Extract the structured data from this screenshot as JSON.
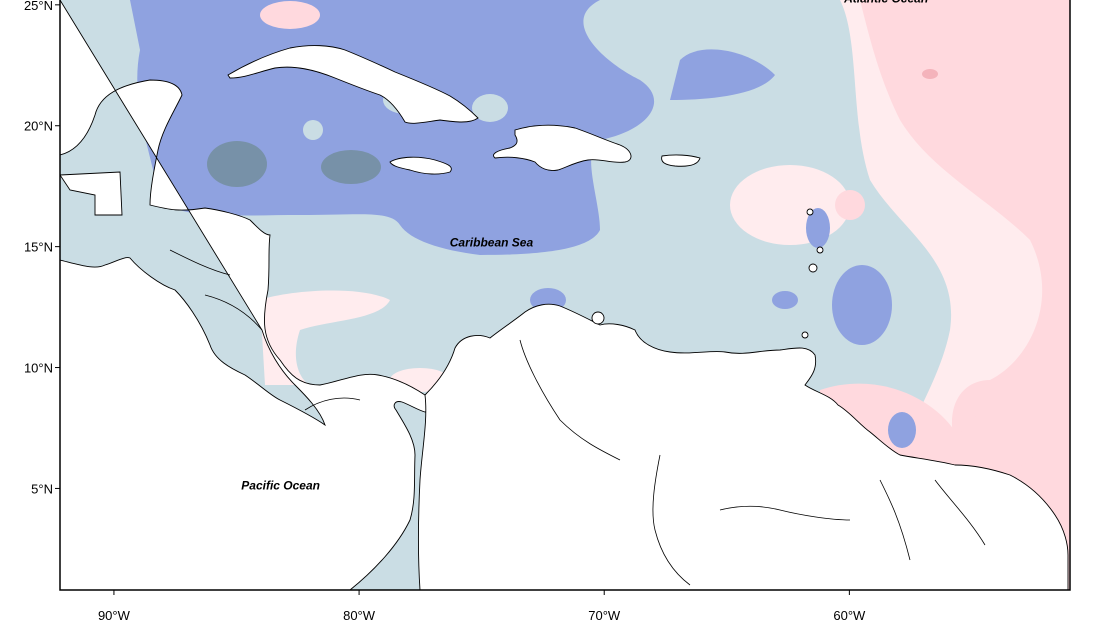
{
  "map": {
    "type": "anomaly-map",
    "extent": {
      "lon": [
        -92.2,
        -51.0
      ],
      "lat": [
        0.8,
        25.2
      ]
    },
    "lon_ticks": [
      {
        "value": -90,
        "label": "90°W"
      },
      {
        "value": -80,
        "label": "80°W"
      },
      {
        "value": -70,
        "label": "70°W"
      },
      {
        "value": -60,
        "label": "60°W"
      }
    ],
    "lat_ticks": [
      {
        "value": 25,
        "label": "25°N"
      },
      {
        "value": 20,
        "label": "20°N"
      },
      {
        "value": 15,
        "label": "15°N"
      },
      {
        "value": 10,
        "label": "10°N"
      },
      {
        "value": 5,
        "label": "5°N"
      }
    ],
    "ocean_labels": [
      {
        "text": "Atlantic Ocean",
        "lon": -58.5,
        "lat": 25.1
      },
      {
        "text": "Caribbean Sea",
        "lon": -74.6,
        "lat": 15.0
      },
      {
        "text": "Pacific Ocean",
        "lon": -83.2,
        "lat": 4.95
      }
    ],
    "colors": {
      "blue_strong": "#7791a8",
      "blue_medium": "#8fa2e0",
      "blue_light": "#cadde4",
      "pink_light": "#ffecee",
      "pink_medium": "#ffd9de",
      "pink_strong": "#f4b3bb",
      "land": "#ffffff",
      "coast": "#000000"
    }
  }
}
